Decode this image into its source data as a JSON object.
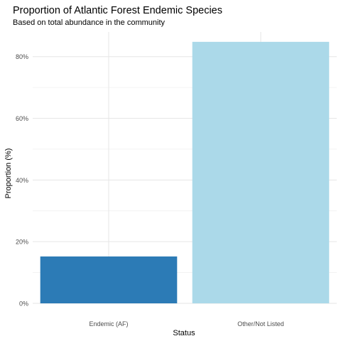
{
  "chart_data": {
    "type": "bar",
    "title": "Proportion of Atlantic Forest Endemic Species",
    "subtitle": "Based on total abundance in the community",
    "xlabel": "Status",
    "ylabel": "Proportion (%)",
    "categories": [
      "Endemic (AF)",
      "Other/Not Listed"
    ],
    "values": [
      15.2,
      84.8
    ],
    "colors": [
      "#2c7bb6",
      "#abd9e9"
    ],
    "ylim": [
      0,
      88
    ],
    "yticks": [
      0,
      20,
      40,
      60,
      80
    ],
    "ytick_labels": [
      "0%",
      "20%",
      "40%",
      "60%",
      "80%"
    ],
    "grid": true,
    "legend": "none"
  }
}
